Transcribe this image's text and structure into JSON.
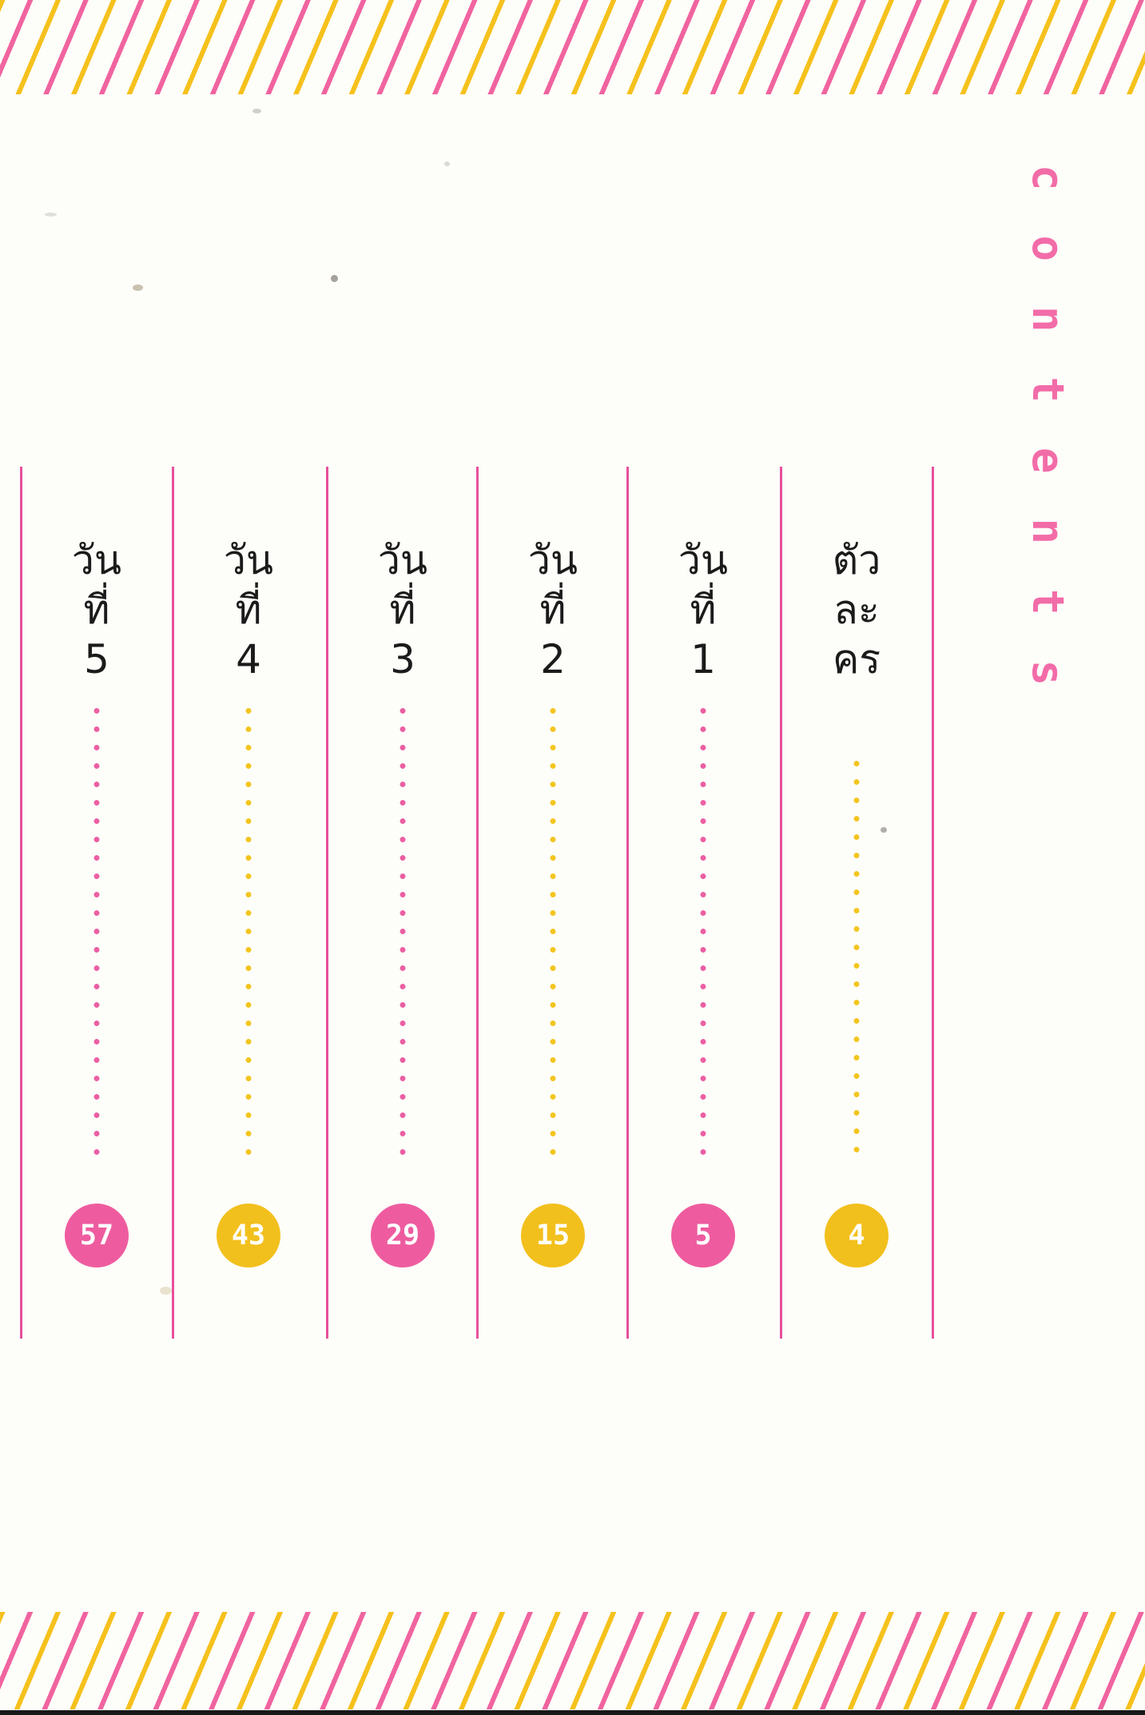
{
  "title": {
    "text": "contents"
  },
  "toc": {
    "entries": [
      {
        "label": "วันที่ 5",
        "label_lines": [
          "วัน",
          "ที่",
          "5"
        ],
        "page": "57",
        "accent": "pink"
      },
      {
        "label": "วันที่ 4",
        "label_lines": [
          "วัน",
          "ที่",
          "4"
        ],
        "page": "43",
        "accent": "yellow"
      },
      {
        "label": "วันที่ 3",
        "label_lines": [
          "วัน",
          "ที่",
          "3"
        ],
        "page": "29",
        "accent": "pink"
      },
      {
        "label": "วันที่ 2",
        "label_lines": [
          "วัน",
          "ที่",
          "2"
        ],
        "page": "15",
        "accent": "yellow"
      },
      {
        "label": "วันที่ 1",
        "label_lines": [
          "วัน",
          "ที่",
          "1"
        ],
        "page": "5",
        "accent": "pink"
      },
      {
        "label": "ตัวละคร",
        "label_lines": [
          "ตัว",
          "ละ",
          "คร"
        ],
        "page": "4",
        "accent": "yellow"
      }
    ]
  },
  "colors": {
    "accent_pink": "#ee5c9f",
    "accent_yellow": "#f2c01d",
    "divider_pink": "#e7509b",
    "stripe_pink": "#f0649f",
    "stripe_yellow": "#f5c11c",
    "title_pink": "#f26ca8",
    "label_text": "#1b1b1b",
    "badge_text": "#ffffff"
  }
}
